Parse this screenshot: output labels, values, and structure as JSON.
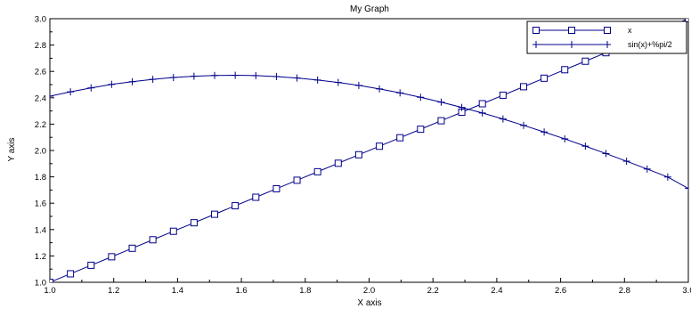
{
  "chart_data": {
    "type": "line",
    "title": "My Graph",
    "xlabel": "X axis",
    "ylabel": "Y axis",
    "xlim": [
      1.0,
      3.0
    ],
    "ylim": [
      1.0,
      3.0
    ],
    "xticks": [
      "1.0",
      "1.2",
      "1.4",
      "1.6",
      "1.8",
      "2.0",
      "2.2",
      "2.4",
      "2.6",
      "2.8",
      "3.0"
    ],
    "yticks": [
      "1.0",
      "1.2",
      "1.4",
      "1.6",
      "1.8",
      "2.0",
      "2.2",
      "2.4",
      "2.6",
      "2.8",
      "3.0"
    ],
    "x": [
      1.0,
      1.0645,
      1.129,
      1.1935,
      1.2581,
      1.3226,
      1.3871,
      1.4516,
      1.5161,
      1.5806,
      1.6452,
      1.7097,
      1.7742,
      1.8387,
      1.9032,
      1.9677,
      2.0323,
      2.0968,
      2.1613,
      2.2258,
      2.2903,
      2.3548,
      2.4194,
      2.4839,
      2.5484,
      2.6129,
      2.6774,
      2.7419,
      2.8065,
      2.871,
      2.9355,
      3.0
    ],
    "series": [
      {
        "name": "x",
        "marker": "square",
        "values": [
          1.0,
          1.0645,
          1.129,
          1.1935,
          1.2581,
          1.3226,
          1.3871,
          1.4516,
          1.5161,
          1.5806,
          1.6452,
          1.7097,
          1.7742,
          1.8387,
          1.9032,
          1.9677,
          2.0323,
          2.0968,
          2.1613,
          2.2258,
          2.2903,
          2.3548,
          2.4194,
          2.4839,
          2.5484,
          2.6129,
          2.6774,
          2.7419,
          2.8065,
          2.871,
          2.9355,
          3.0
        ]
      },
      {
        "name": "sin(x)+%pi/2",
        "marker": "plus",
        "values": [
          2.4122,
          2.4451,
          2.475,
          2.5016,
          2.5218,
          2.5399,
          2.5537,
          2.5634,
          2.5692,
          2.5708,
          2.5681,
          2.5612,
          2.5501,
          2.5348,
          2.5163,
          2.4937,
          2.4672,
          2.4372,
          2.4036,
          2.3668,
          2.3267,
          2.2845,
          2.2392,
          2.1905,
          2.1404,
          2.0881,
          2.0329,
          1.9767,
          1.9186,
          1.8593,
          1.7988,
          1.7119
        ]
      }
    ],
    "legend_position": "top-right",
    "grid": false,
    "line_color": "#00008b",
    "axis_color": "#000000"
  }
}
